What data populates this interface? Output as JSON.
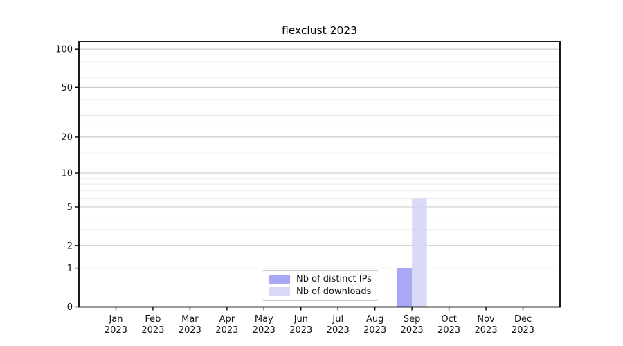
{
  "chart_data": {
    "type": "bar",
    "title": "flexclust 2023",
    "categories": [
      "Jan",
      "Feb",
      "Mar",
      "Apr",
      "May",
      "Jun",
      "Jul",
      "Aug",
      "Sep",
      "Oct",
      "Nov",
      "Dec"
    ],
    "x_year": "2023",
    "series": [
      {
        "name": "Nb of distinct IPs",
        "color": "#9c9cf4",
        "values": [
          0,
          0,
          0,
          0,
          0,
          0,
          0,
          0,
          1,
          0,
          0,
          0
        ]
      },
      {
        "name": "Nb of downloads",
        "color": "#d4d4f7",
        "values": [
          0,
          0,
          0,
          0,
          0,
          0,
          0,
          0,
          6,
          0,
          0,
          0
        ]
      }
    ],
    "bar_opacity": 0.88,
    "y_scale": "log1p",
    "y_major_ticks": [
      0,
      1,
      2,
      5,
      10,
      20,
      50,
      100
    ],
    "y_minor_gridlines": [
      3,
      4,
      6,
      7,
      8,
      9,
      15,
      25,
      30,
      40,
      60,
      70,
      80,
      90
    ],
    "ylim": [
      0,
      115
    ],
    "xlabel": "",
    "ylabel": "",
    "grid": "horizontal",
    "legend_position": "lower center",
    "colors": {
      "grid_major": "#c9c9c9",
      "grid_minor": "#ececec",
      "frame": "#000000",
      "tick_label": "#141414"
    }
  }
}
